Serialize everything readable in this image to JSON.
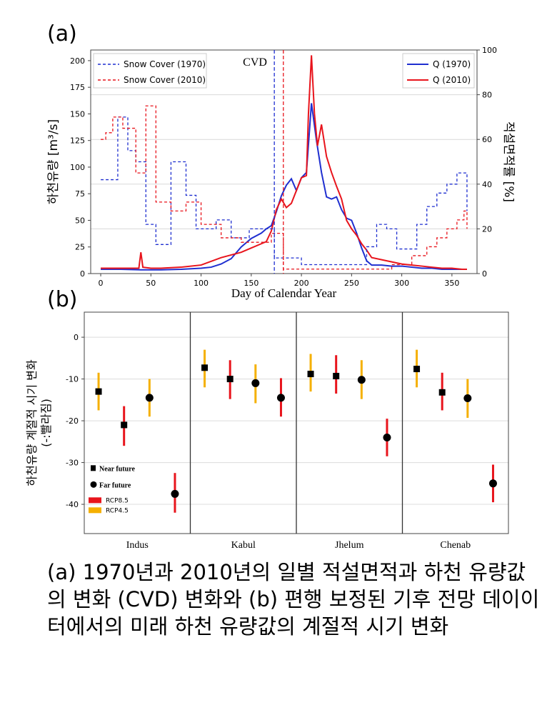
{
  "panel_a_tag": "(a)",
  "panel_b_tag": "(b)",
  "caption": "(a) 1970년과 2010년의 일별 적설면적과 하천 유량값의 변화 (CVD) 변화와 (b) 편행 보정된 기후 전망 데이이터에서의 미래 하천 유량값의 계절적 시기 변화",
  "colors": {
    "blue": "#1f2fd0",
    "red": "#e8141c",
    "orange": "#f5b000",
    "black": "#000000"
  },
  "chart_data": [
    {
      "type": "line",
      "xlabel": "Day of Calendar Year",
      "ylabel": "하천유량 [m³/s]",
      "y2label": "적설면적률 [%]",
      "xlim": [
        -10,
        375
      ],
      "ylim": [
        0,
        210
      ],
      "y2lim": [
        0,
        100
      ],
      "xticks": [
        0,
        50,
        100,
        150,
        200,
        250,
        300,
        350
      ],
      "yticks": [
        0,
        25,
        50,
        75,
        100,
        125,
        150,
        175,
        200
      ],
      "y2ticks": [
        0,
        20,
        40,
        60,
        80,
        100
      ],
      "annotation": "CVD",
      "legend_left": [
        "Snow Cover (1970)",
        "Snow Cover (2010)"
      ],
      "legend_right": [
        "Q (1970)",
        "Q (2010)"
      ],
      "cvd_lines": [
        {
          "series": "1970",
          "x": 173
        },
        {
          "series": "2010",
          "x": 182
        }
      ],
      "series": [
        {
          "name": "Q (1970)",
          "axis": "left",
          "style": "solid",
          "color": "blue",
          "x": [
            0,
            20,
            40,
            60,
            80,
            100,
            110,
            120,
            130,
            140,
            150,
            160,
            165,
            170,
            175,
            180,
            185,
            190,
            195,
            200,
            205,
            210,
            215,
            220,
            225,
            230,
            235,
            240,
            245,
            250,
            255,
            260,
            265,
            270,
            280,
            290,
            300,
            310,
            320,
            330,
            340,
            350,
            360,
            365
          ],
          "y": [
            4,
            4,
            3.5,
            3.5,
            4,
            5,
            6,
            9,
            14,
            25,
            33,
            38,
            42,
            45,
            58,
            73,
            83,
            89,
            78,
            90,
            95,
            160,
            125,
            95,
            72,
            70,
            72,
            60,
            52,
            50,
            38,
            24,
            12,
            8,
            8,
            7,
            7,
            6,
            5,
            5,
            4,
            4,
            4,
            4
          ]
        },
        {
          "name": "Q (2010)",
          "axis": "left",
          "style": "solid",
          "color": "red",
          "x": [
            0,
            20,
            38,
            40,
            42,
            50,
            60,
            80,
            100,
            120,
            140,
            150,
            160,
            165,
            170,
            175,
            180,
            185,
            190,
            195,
            200,
            205,
            207,
            210,
            213,
            216,
            220,
            225,
            230,
            235,
            240,
            245,
            250,
            255,
            260,
            265,
            270,
            280,
            290,
            300,
            310,
            320,
            330,
            340,
            350,
            360,
            365
          ],
          "y": [
            5,
            5,
            5,
            20,
            6,
            5,
            5,
            6,
            8,
            15,
            20,
            24,
            28,
            30,
            40,
            60,
            70,
            62,
            66,
            78,
            90,
            92,
            150,
            205,
            150,
            120,
            140,
            110,
            95,
            82,
            70,
            50,
            42,
            36,
            28,
            22,
            15,
            13,
            11,
            9,
            8,
            7,
            6,
            5,
            5,
            4,
            4
          ]
        },
        {
          "name": "Snow Cover (1970)",
          "axis": "right",
          "style": "dashed",
          "color": "blue",
          "step": true,
          "x": [
            0,
            12,
            17,
            27,
            35,
            45,
            55,
            70,
            85,
            95,
            100,
            115,
            130,
            140,
            148,
            160,
            170,
            173,
            200,
            230,
            265,
            275,
            285,
            295,
            315,
            325,
            335,
            345,
            355,
            365
          ],
          "y": [
            42,
            42,
            70,
            55,
            50,
            22,
            13,
            50,
            35,
            20,
            20,
            24,
            16,
            16,
            20,
            20,
            20,
            7,
            4,
            4,
            12,
            22,
            20,
            11,
            22,
            30,
            36,
            40,
            45,
            28
          ]
        },
        {
          "name": "Snow Cover (2010)",
          "axis": "right",
          "style": "dashed",
          "color": "red",
          "step": true,
          "x": [
            0,
            5,
            12,
            22,
            35,
            45,
            55,
            70,
            85,
            100,
            120,
            140,
            155,
            170,
            182,
            190,
            205,
            230,
            250,
            270,
            290,
            310,
            325,
            335,
            345,
            355,
            362,
            365
          ],
          "y": [
            60,
            63,
            70,
            65,
            45,
            75,
            32,
            28,
            32,
            22,
            16,
            14,
            14,
            18,
            2,
            2,
            2,
            2,
            2,
            2,
            4,
            8,
            12,
            16,
            20,
            24,
            28,
            20
          ]
        }
      ]
    },
    {
      "type": "errorbar",
      "ylabel": "하천유량 계절적 시기 변화 (-:빨라짐)",
      "ylim": [
        -47,
        6
      ],
      "yticks": [
        0,
        -10,
        -20,
        -30,
        -40
      ],
      "categories": [
        "Indus",
        "Kabul",
        "Jhelum",
        "Chenab"
      ],
      "legend": [
        {
          "marker": "square",
          "label": "Near future"
        },
        {
          "marker": "circle",
          "label": "Far future"
        },
        {
          "swatch": "red",
          "label": "RCP8.5"
        },
        {
          "swatch": "orange",
          "label": "RCP4.5"
        }
      ],
      "points": [
        {
          "category": "Indus",
          "horizon": "Near future",
          "scenario": "RCP4.5",
          "value": -13,
          "low": -17.5,
          "high": -8.5
        },
        {
          "category": "Indus",
          "horizon": "Near future",
          "scenario": "RCP8.5",
          "value": -21,
          "low": -26,
          "high": -16.5
        },
        {
          "category": "Indus",
          "horizon": "Far future",
          "scenario": "RCP4.5",
          "value": -14.5,
          "low": -19,
          "high": -10
        },
        {
          "category": "Indus",
          "horizon": "Far future",
          "scenario": "RCP8.5",
          "value": -37.5,
          "low": -42,
          "high": -32.5
        },
        {
          "category": "Kabul",
          "horizon": "Near future",
          "scenario": "RCP4.5",
          "value": -7.3,
          "low": -12,
          "high": -3
        },
        {
          "category": "Kabul",
          "horizon": "Near future",
          "scenario": "RCP8.5",
          "value": -10,
          "low": -14.8,
          "high": -5.5
        },
        {
          "category": "Kabul",
          "horizon": "Far future",
          "scenario": "RCP4.5",
          "value": -11,
          "low": -15.8,
          "high": -6.5
        },
        {
          "category": "Kabul",
          "horizon": "Far future",
          "scenario": "RCP8.5",
          "value": -14.5,
          "low": -19,
          "high": -9.8
        },
        {
          "category": "Jhelum",
          "horizon": "Near future",
          "scenario": "RCP4.5",
          "value": -8.8,
          "low": -13,
          "high": -4
        },
        {
          "category": "Jhelum",
          "horizon": "Near future",
          "scenario": "RCP8.5",
          "value": -9.3,
          "low": -13.5,
          "high": -4.3
        },
        {
          "category": "Jhelum",
          "horizon": "Far future",
          "scenario": "RCP4.5",
          "value": -10.2,
          "low": -14.8,
          "high": -5.5
        },
        {
          "category": "Jhelum",
          "horizon": "Far future",
          "scenario": "RCP8.5",
          "value": -24,
          "low": -28.5,
          "high": -19.5
        },
        {
          "category": "Chenab",
          "horizon": "Near future",
          "scenario": "RCP4.5",
          "value": -7.6,
          "low": -12,
          "high": -3
        },
        {
          "category": "Chenab",
          "horizon": "Near future",
          "scenario": "RCP8.5",
          "value": -13.2,
          "low": -17.5,
          "high": -8.5
        },
        {
          "category": "Chenab",
          "horizon": "Far future",
          "scenario": "RCP4.5",
          "value": -14.6,
          "low": -19.3,
          "high": -10
        },
        {
          "category": "Chenab",
          "horizon": "Far future",
          "scenario": "RCP8.5",
          "value": -35,
          "low": -39.5,
          "high": -30.5
        }
      ]
    }
  ]
}
